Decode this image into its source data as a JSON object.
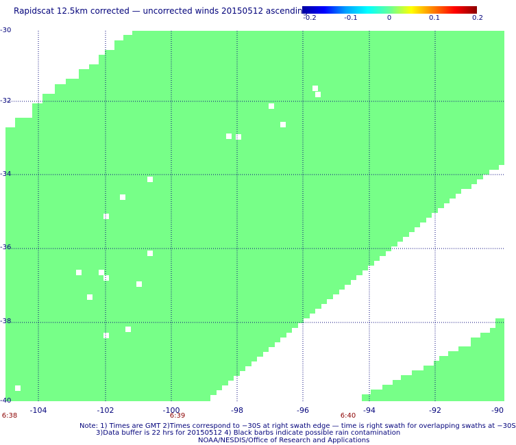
{
  "title": "Rapidscat 12.5km corrected — uncorrected winds 20150512 ascending",
  "colorbar": {
    "ticks": [
      "-0.2",
      "-0.1",
      "0",
      "0.1",
      "0.2"
    ],
    "stops": [
      "#0000a0",
      "#0000ff",
      "#00a0ff",
      "#00ffff",
      "#66ff99",
      "#ffff00",
      "#ff8000",
      "#ff0000",
      "#8b0000"
    ]
  },
  "swath_color": "#77ff88",
  "grid_color": "#00007a",
  "axes": {
    "lon_labels": [
      "-104",
      "-102",
      "-100",
      "-98",
      "-96",
      "-94",
      "-92",
      "-90"
    ],
    "lat_labels": [
      "-30",
      "-32",
      "-34",
      "-36",
      "-38",
      "-40"
    ],
    "lon_range": [
      -105.0,
      -90.0
    ],
    "lat_range": [
      -40.0,
      -30.0
    ]
  },
  "time_labels": [
    "6:38",
    "6:39",
    "6:40"
  ],
  "notes": [
    "Note: 1) Times are GMT 2)Times correspond to −30S at right swath edge — time is right swath for overlapping swaths at −30S",
    "3)Data buffer is 22 hrs for 20150512 4) Black barbs indicate possible rain contamination",
    "NOAA/NESDIS/Office of Research and Applications"
  ]
}
